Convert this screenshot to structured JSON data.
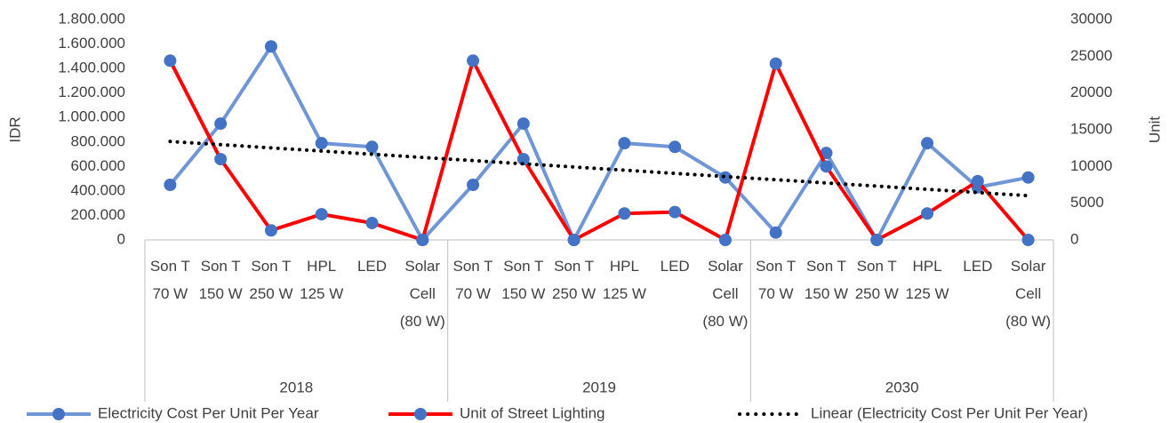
{
  "chart_data": {
    "type": "line",
    "y_label": "IDR",
    "y2_label": "Unit",
    "categories": [
      "Son T 70 W",
      "Son T 150 W",
      "Son T 250 W",
      "HPL 125 W",
      "LED",
      "Solar Cell (80 W)",
      "Son T 70 W",
      "Son T 150 W",
      "Son T 250 W",
      "HPL 125 W",
      "LED",
      "Solar Cell (80 W)",
      "Son T 70 W",
      "Son T 150 W",
      "Son T 250 W",
      "HPL 125 W",
      "LED",
      "Solar Cell (80 W)"
    ],
    "groups": [
      "2018",
      "2019",
      "2030"
    ],
    "series": [
      {
        "name": "Electricity Cost Per Unit Per Year",
        "color": "#7096d6",
        "marker_color": "#4472c4",
        "values": [
          450000,
          950000,
          1580000,
          790000,
          760000,
          0,
          450000,
          950000,
          0,
          790000,
          760000,
          510000,
          60000,
          710000,
          0,
          790000,
          430000,
          510000
        ]
      },
      {
        "name": "Unit of Street Lighting",
        "color": "#ff0000",
        "marker_color": "#4472c4",
        "axis": "y2",
        "values": [
          24400,
          11000,
          1300,
          3500,
          2300,
          0,
          24400,
          11000,
          0,
          3600,
          3800,
          0,
          24000,
          10000,
          0,
          3600,
          8000,
          0
        ]
      }
    ],
    "trendline": {
      "name": "Linear (Electricity Cost Per Unit Per Year)",
      "series": 0,
      "color": "#000000"
    },
    "ylim": [
      0,
      1800000
    ],
    "yticks": [
      0,
      {
        "value": 200000,
        "label": "200.000"
      },
      {
        "value": 400000,
        "label": "400.000"
      },
      {
        "value": 600000,
        "label": "600.000"
      },
      {
        "value": 800000,
        "label": "800.000"
      },
      {
        "value": 1000000,
        "label": "1.000.000"
      },
      {
        "value": 1200000,
        "label": "1.200.000"
      },
      {
        "value": 1400000,
        "label": "1.400.000"
      },
      {
        "value": 1600000,
        "label": "1.600.000"
      },
      {
        "value": 1800000,
        "label": "1.800.000"
      }
    ],
    "y2lim": [
      0,
      30000
    ],
    "y2ticks": [
      0,
      5000,
      10000,
      15000,
      20000,
      25000,
      30000
    ],
    "grid": false,
    "legend": "bottom"
  }
}
